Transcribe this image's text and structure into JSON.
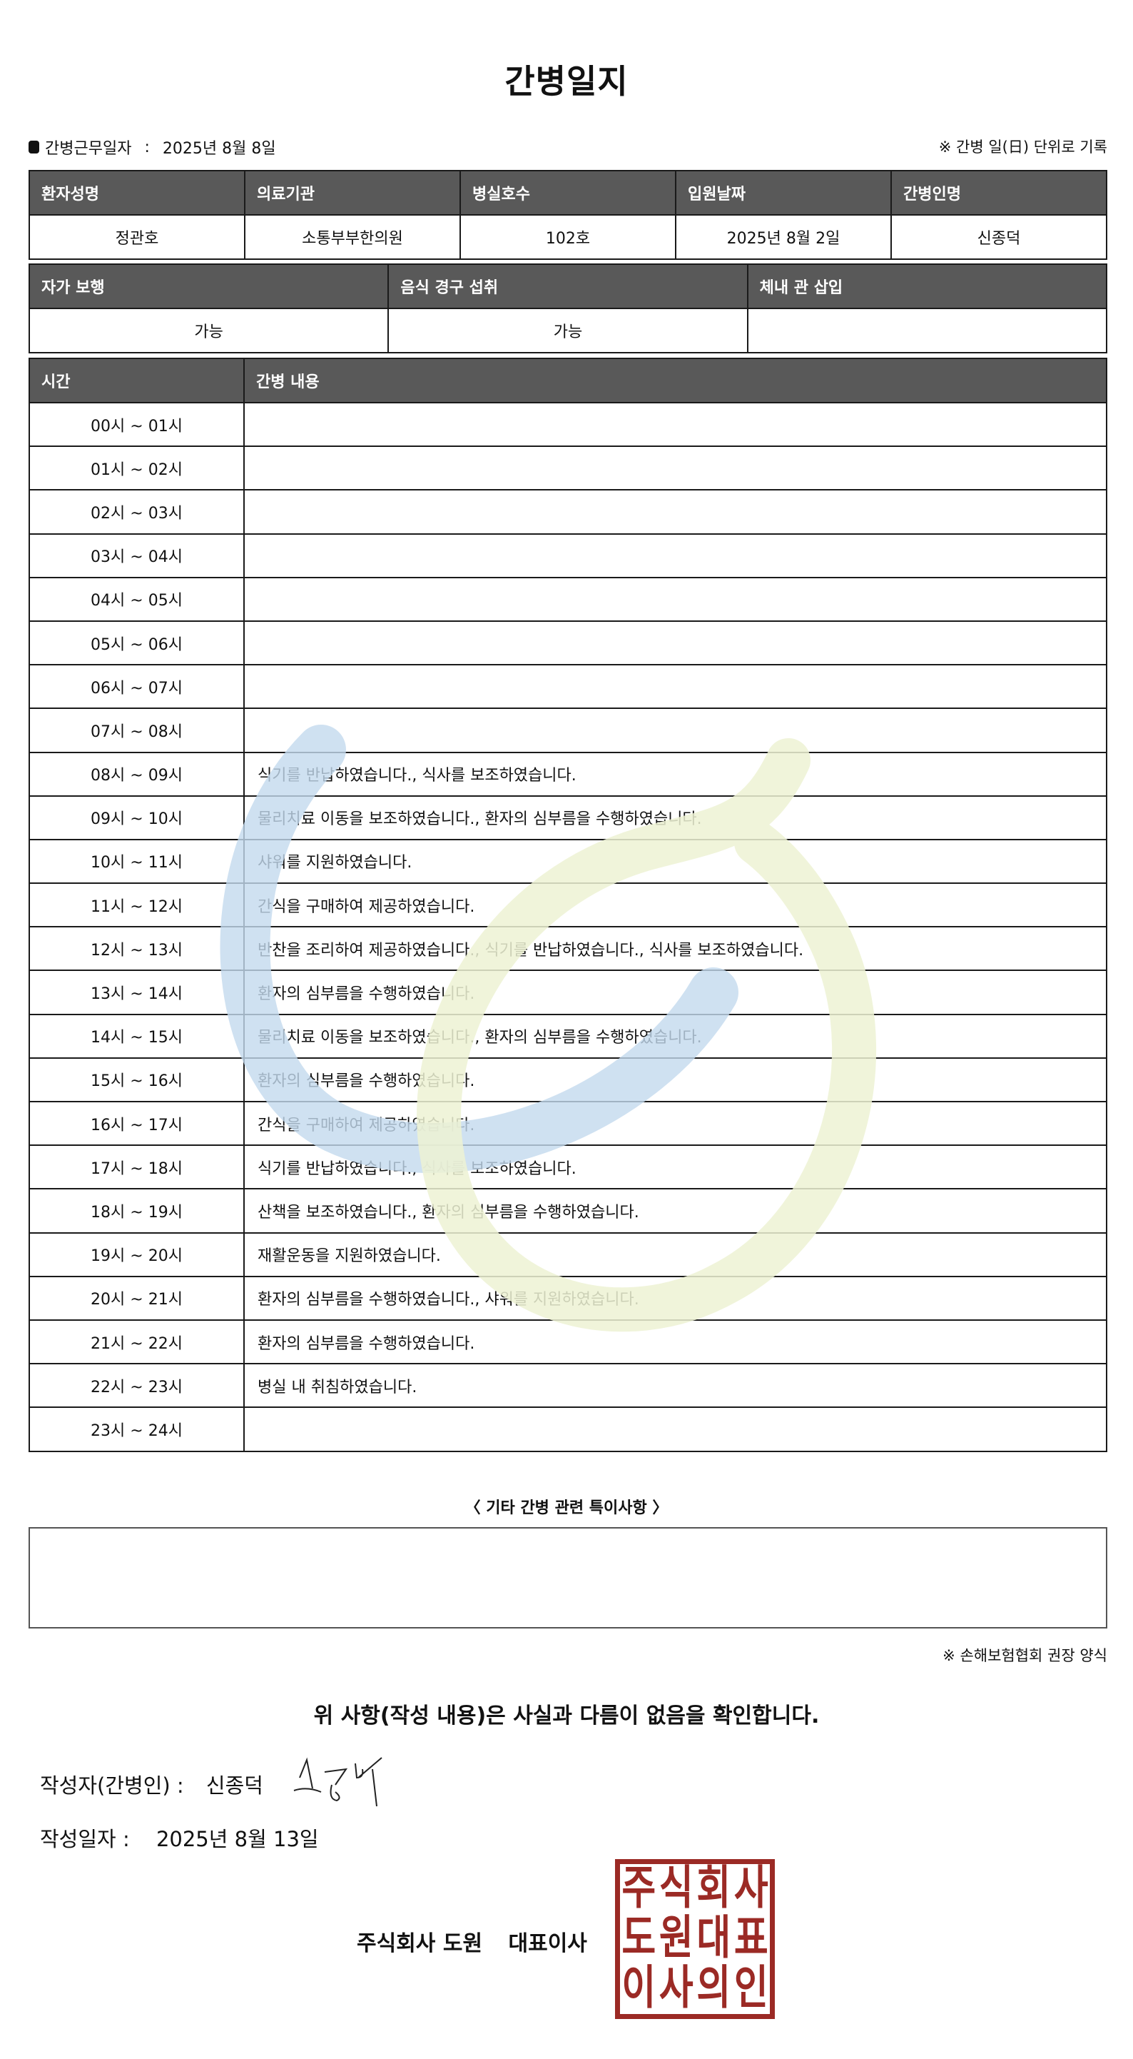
{
  "title": "간병일지",
  "info": {
    "label": "간병근무일자",
    "colon": ":",
    "value": "2025년 8월 8일",
    "note": "※ 간병 일(日) 단위로 기록"
  },
  "patient_table": {
    "headers": [
      "환자성명",
      "의료기관",
      "병실호수",
      "입원날짜",
      "간병인명"
    ],
    "values": [
      "정관호",
      "소통부부한의원",
      "102호",
      "2025년 8월 2일",
      "신종덕"
    ]
  },
  "status_table": {
    "headers": [
      "자가 보행",
      "음식 경구 섭취",
      "체내 관 삽입"
    ],
    "values": [
      "가능",
      "가능",
      ""
    ]
  },
  "log_table": {
    "headers": [
      "시간",
      "간병 내용"
    ],
    "rows": [
      {
        "time": "00시 ~ 01시",
        "content": ""
      },
      {
        "time": "01시 ~ 02시",
        "content": ""
      },
      {
        "time": "02시 ~ 03시",
        "content": ""
      },
      {
        "time": "03시 ~ 04시",
        "content": ""
      },
      {
        "time": "04시 ~ 05시",
        "content": ""
      },
      {
        "time": "05시 ~ 06시",
        "content": ""
      },
      {
        "time": "06시 ~ 07시",
        "content": ""
      },
      {
        "time": "07시 ~ 08시",
        "content": ""
      },
      {
        "time": "08시 ~ 09시",
        "content": "식기를 반납하였습니다., 식사를 보조하였습니다."
      },
      {
        "time": "09시 ~ 10시",
        "content": "물리치료 이동을 보조하였습니다., 환자의 심부름을 수행하였습니다."
      },
      {
        "time": "10시 ~ 11시",
        "content": "샤워를 지원하였습니다."
      },
      {
        "time": "11시 ~ 12시",
        "content": "간식을 구매하여 제공하였습니다."
      },
      {
        "time": "12시 ~ 13시",
        "content": "반찬을 조리하여 제공하였습니다., 식기를 반납하였습니다., 식사를 보조하였습니다."
      },
      {
        "time": "13시 ~ 14시",
        "content": "환자의 심부름을 수행하였습니다."
      },
      {
        "time": "14시 ~ 15시",
        "content": "물리치료 이동을 보조하였습니다., 환자의 심부름을 수행하였습니다."
      },
      {
        "time": "15시 ~ 16시",
        "content": "환자의 심부름을 수행하였습니다."
      },
      {
        "time": "16시 ~ 17시",
        "content": "간식을 구매하여 제공하였습니다."
      },
      {
        "time": "17시 ~ 18시",
        "content": "식기를 반납하였습니다., 식사를 보조하였습니다."
      },
      {
        "time": "18시 ~ 19시",
        "content": "산책을 보조하였습니다., 환자의 심부름을 수행하였습니다."
      },
      {
        "time": "19시 ~ 20시",
        "content": "재활운동을 지원하였습니다."
      },
      {
        "time": "20시 ~ 21시",
        "content": "환자의 심부름을 수행하였습니다., 샤워를 지원하였습니다."
      },
      {
        "time": "21시 ~ 22시",
        "content": "환자의 심부름을 수행하였습니다."
      },
      {
        "time": "22시 ~ 23시",
        "content": "병실 내 취침하였습니다."
      },
      {
        "time": "23시 ~ 24시",
        "content": ""
      }
    ]
  },
  "special": {
    "title": "〈 기타 간병 관련 특이사항 〉",
    "content": ""
  },
  "form_note": "※ 손해보험협회 권장 양식",
  "confirmation": "위 사항(작성 내용)은 사실과 다름이 없음을 확인합니다.",
  "writer": {
    "label": "작성자(간병인) :",
    "name": "신종덕"
  },
  "written_date": {
    "label": "작성일자 :",
    "value": "2025년 8월 13일"
  },
  "company": {
    "name": "주식회사 도원",
    "title": "대표이사"
  },
  "stamp": {
    "text": "주식회사도원대표이사의인",
    "color": "#9b2a25"
  },
  "colors": {
    "header_bg": "#595959",
    "watermark_blue": "#c3daee",
    "watermark_green": "#edf2d3"
  }
}
